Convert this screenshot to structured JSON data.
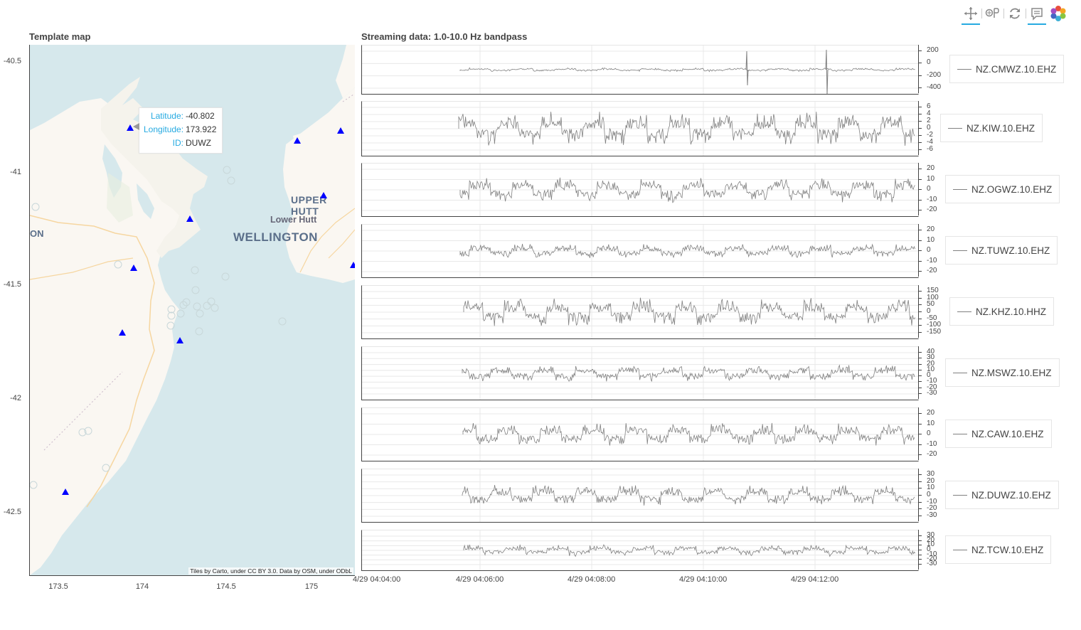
{
  "toolbar": {
    "items": [
      {
        "name": "pan-tool",
        "icon": "pan-icon",
        "active": true
      },
      {
        "name": "wheel-zoom-tool",
        "icon": "wheel-zoom-icon",
        "active": false
      },
      {
        "name": "reset-tool",
        "icon": "reset-icon",
        "active": false
      },
      {
        "name": "hover-tool",
        "icon": "hover-icon",
        "active": true
      },
      {
        "name": "bokeh-logo",
        "icon": "bokeh-logo-icon",
        "active": false
      }
    ]
  },
  "map": {
    "title": "Template map",
    "attribution": "Tiles by Carto, under CC BY 3.0. Data by OSM, under ODbL",
    "y_ticks": [
      "-40.5",
      "-41",
      "-41.5",
      "-42",
      "-42.5"
    ],
    "x_ticks": [
      "173.5",
      "174",
      "174.5",
      "175"
    ],
    "place_labels": {
      "upper_hutt": "UPPER HUTT",
      "lower_hutt": "Lower Hutt",
      "wellington": "WELLINGTON",
      "partial_left": "ON"
    },
    "station_color": "#0000ff",
    "tooltip": {
      "lat_key": "Latitude:",
      "lat_val": "-40.802",
      "lon_key": "Longitude:",
      "lon_val": "173.922",
      "id_key": "ID:",
      "id_val": "DUWZ"
    }
  },
  "stream": {
    "title": "Streaming data: 1.0-10.0 Hz bandpass",
    "line_color": "#808080",
    "time_labels": [
      "4/29 04:04:00",
      "4/29 04:06:00",
      "4/29 04:08:00",
      "4/29 04:10:00",
      "4/29 04:12:00"
    ],
    "panels": [
      {
        "label": "NZ.CMWZ.10.EHZ",
        "ticks": [
          "200",
          "0",
          "-200",
          "-400"
        ]
      },
      {
        "label": "NZ.KIW.10.EHZ",
        "ticks": [
          "6",
          "4",
          "2",
          "0",
          "-2",
          "-4",
          "-6"
        ]
      },
      {
        "label": "NZ.OGWZ.10.EHZ",
        "ticks": [
          "20",
          "10",
          "0",
          "-10",
          "-20"
        ]
      },
      {
        "label": "NZ.TUWZ.10.EHZ",
        "ticks": [
          "20",
          "10",
          "0",
          "-10",
          "-20"
        ]
      },
      {
        "label": "NZ.KHZ.10.HHZ",
        "ticks": [
          "150",
          "100",
          "50",
          "0",
          "-50",
          "-100",
          "-150"
        ]
      },
      {
        "label": "NZ.MSWZ.10.EHZ",
        "ticks": [
          "40",
          "30",
          "20",
          "10",
          "0",
          "-10",
          "-20",
          "-30"
        ]
      },
      {
        "label": "NZ.CAW.10.EHZ",
        "ticks": [
          "20",
          "10",
          "0",
          "-10",
          "-20"
        ]
      },
      {
        "label": "NZ.DUWZ.10.EHZ",
        "ticks": [
          "30",
          "20",
          "10",
          "0",
          "-10",
          "-20",
          "-30"
        ]
      },
      {
        "label": "NZ.TCW.10.EHZ",
        "ticks": [
          "30",
          "20",
          "10",
          "0",
          "-10",
          "-20",
          "-30"
        ]
      }
    ]
  }
}
